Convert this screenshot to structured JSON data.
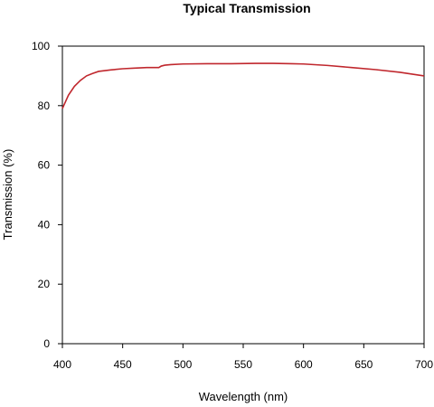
{
  "chart_data": {
    "type": "line",
    "title": "Typical Transmission",
    "xlabel": "Wavelength (nm)",
    "ylabel": "Transmission (%)",
    "xlim": [
      400,
      700
    ],
    "ylim": [
      0,
      100
    ],
    "xticks": [
      400,
      450,
      500,
      550,
      600,
      650,
      700
    ],
    "yticks": [
      0,
      20,
      40,
      60,
      80,
      100
    ],
    "grid": false,
    "legend": "none",
    "series_color": "#c0272d",
    "series": [
      {
        "x": [
          400,
          405,
          410,
          415,
          420,
          425,
          430,
          440,
          450,
          460,
          470,
          480,
          482,
          485,
          490,
          500,
          520,
          540,
          560,
          575,
          590,
          600,
          620,
          640,
          660,
          680,
          700
        ],
        "y": [
          79,
          83.5,
          86.5,
          88.5,
          90,
          90.8,
          91.5,
          92,
          92.4,
          92.6,
          92.8,
          92.8,
          93.3,
          93.6,
          93.8,
          94,
          94.1,
          94.1,
          94.2,
          94.2,
          94.1,
          94,
          93.5,
          92.8,
          92.1,
          91.2,
          90
        ]
      }
    ]
  }
}
